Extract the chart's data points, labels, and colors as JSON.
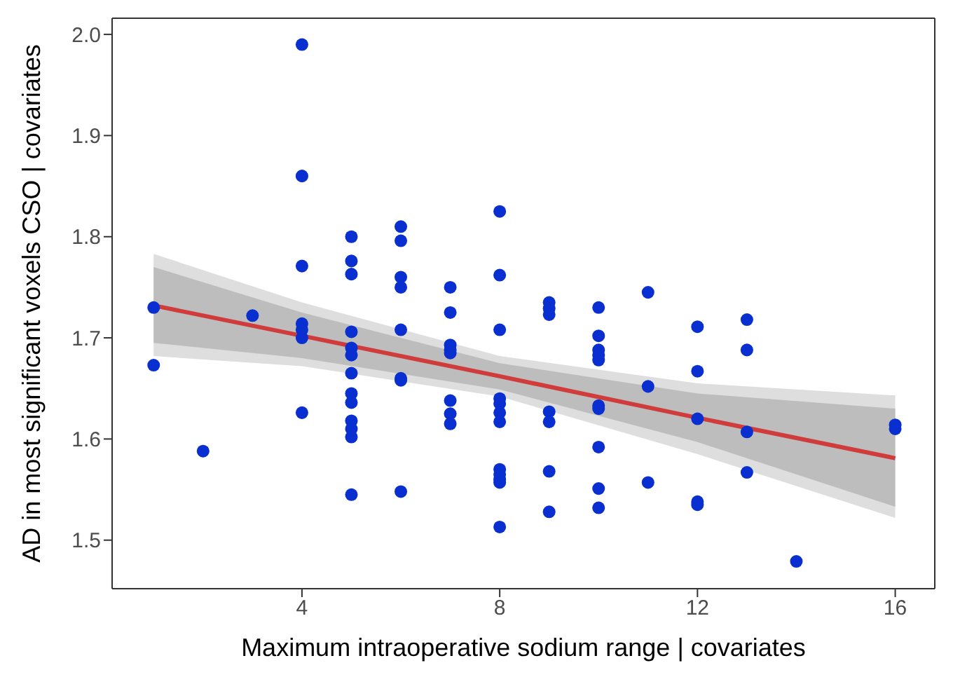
{
  "chart_data": {
    "type": "scatter",
    "xlabel": "Maximum intraoperative sodium range | covariates",
    "ylabel": "AD in most significant voxels CSO | covariates",
    "x": [
      1,
      1,
      2,
      3,
      4,
      4,
      4,
      4,
      4,
      4,
      4,
      5,
      5,
      5,
      5,
      5,
      5,
      5,
      5,
      5,
      5,
      5,
      5,
      5,
      6,
      6,
      6,
      6,
      6,
      6,
      6,
      6,
      7,
      7,
      7,
      7,
      7,
      7,
      7,
      7,
      8,
      8,
      8,
      8,
      8,
      8,
      8,
      8,
      8,
      8,
      8,
      8,
      9,
      9,
      9,
      9,
      9,
      9,
      9,
      10,
      10,
      10,
      10,
      10,
      10,
      10,
      10,
      10,
      10,
      11,
      11,
      11,
      12,
      12,
      12,
      12,
      12,
      13,
      13,
      13,
      13,
      14,
      16,
      16
    ],
    "series": [
      {
        "color": "#0a2fd0",
        "marker": "circle",
        "values": [
          1.73,
          1.673,
          1.588,
          1.722,
          1.99,
          1.86,
          1.771,
          1.714,
          1.708,
          1.7,
          1.626,
          1.8,
          1.776,
          1.763,
          1.706,
          1.69,
          1.683,
          1.665,
          1.645,
          1.636,
          1.618,
          1.61,
          1.602,
          1.545,
          1.81,
          1.796,
          1.76,
          1.75,
          1.708,
          1.66,
          1.658,
          1.548,
          1.75,
          1.725,
          1.693,
          1.688,
          1.685,
          1.638,
          1.625,
          1.615,
          1.825,
          1.762,
          1.708,
          1.64,
          1.635,
          1.626,
          1.617,
          1.57,
          1.565,
          1.56,
          1.557,
          1.513,
          1.735,
          1.729,
          1.723,
          1.627,
          1.617,
          1.568,
          1.528,
          1.73,
          1.702,
          1.688,
          1.683,
          1.678,
          1.633,
          1.63,
          1.592,
          1.551,
          1.532,
          1.745,
          1.652,
          1.557,
          1.711,
          1.667,
          1.62,
          1.538,
          1.535,
          1.718,
          1.688,
          1.607,
          1.567,
          1.479,
          1.614,
          1.61
        ]
      },
      {
        "type": "area",
        "color": "#dedede",
        "x": [
          1,
          4,
          8,
          12,
          16
        ],
        "values": [
          null,
          null,
          null,
          null,
          null
        ],
        "lower": [
          1.682,
          1.672,
          1.642,
          1.585,
          1.522
        ],
        "upper": [
          1.783,
          1.735,
          1.682,
          1.655,
          1.643
        ]
      },
      {
        "type": "line",
        "color": "#d03c3c",
        "x": [
          1,
          4,
          8,
          12,
          16
        ],
        "values": [
          1.732,
          1.702,
          1.662,
          1.621,
          1.581
        ],
        "lower": [
          1.695,
          1.68,
          1.649,
          1.597,
          1.533
        ],
        "upper": [
          1.77,
          1.725,
          1.675,
          1.645,
          1.63
        ]
      }
    ],
    "xlim": [
      0.16,
      16.8
    ],
    "xticks": [
      4,
      8,
      12,
      16
    ],
    "ylim": [
      1.452,
      2.016
    ],
    "yticks": [
      1.5,
      1.6,
      1.7,
      1.8,
      1.9,
      {
        "value": 2,
        "label": "2.0"
      }
    ],
    "grid": false,
    "legend": false
  }
}
